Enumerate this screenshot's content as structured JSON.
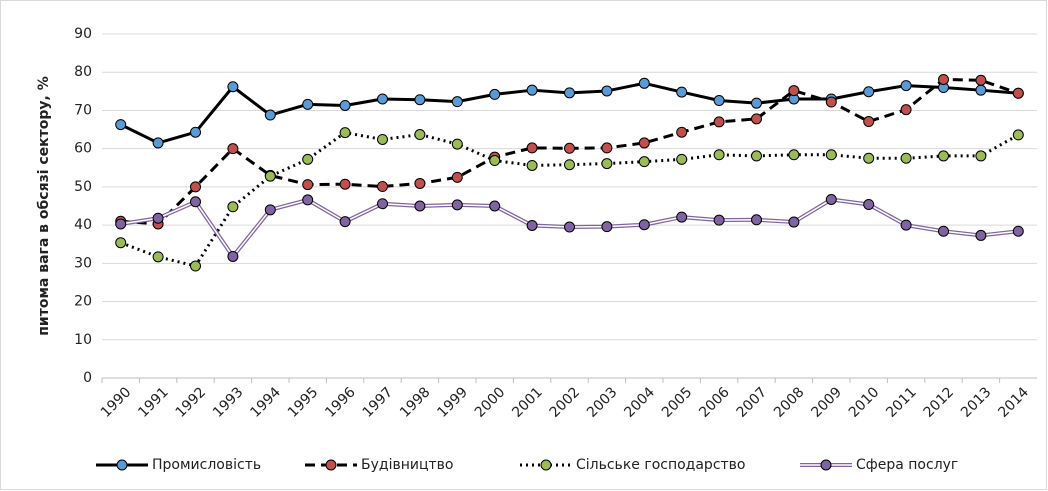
{
  "chart_data": {
    "type": "line",
    "y_label": "питома вага в обсязі сектору, %",
    "categories": [
      "1990",
      "1991",
      "1992",
      "1993",
      "1994",
      "1995",
      "1996",
      "1997",
      "1998",
      "1999",
      "2000",
      "2001",
      "2002",
      "2003",
      "2004",
      "2005",
      "2006",
      "2007",
      "2008",
      "2009",
      "2010",
      "2011",
      "2012",
      "2013",
      "2014"
    ],
    "series": [
      {
        "name": "Промисловість",
        "color": "#5b9bd5",
        "values": [
          66.3,
          61.5,
          64.3,
          76.2,
          68.8,
          71.6,
          71.3,
          73.0,
          72.8,
          72.3,
          74.2,
          75.3,
          74.6,
          75.1,
          77.1,
          74.8,
          72.6,
          71.9,
          73.0,
          73.0,
          74.9,
          76.5,
          76.0,
          75.3,
          74.5
        ]
      },
      {
        "name": "Будівництво",
        "color": "#c0504d",
        "values": [
          41.0,
          40.3,
          50.0,
          60.0,
          53.0,
          50.6,
          50.7,
          50.1,
          50.9,
          52.5,
          57.8,
          60.2,
          60.1,
          60.2,
          61.5,
          64.3,
          67.0,
          67.8,
          75.2,
          72.2,
          67.1,
          70.2,
          78.1,
          77.9,
          74.5
        ]
      },
      {
        "name": "Сільське господарство",
        "color": "#9bbb59",
        "values": [
          35.4,
          31.7,
          29.3,
          44.8,
          52.8,
          57.2,
          64.2,
          62.4,
          63.7,
          61.2,
          56.9,
          55.6,
          55.8,
          56.1,
          56.6,
          57.2,
          58.4,
          58.1,
          58.4,
          58.4,
          57.5,
          57.5,
          58.1,
          58.1,
          63.6
        ]
      },
      {
        "name": "Сфера послуг",
        "color": "#8064a2",
        "values": [
          40.3,
          41.8,
          46.1,
          31.8,
          44.0,
          46.6,
          40.9,
          45.6,
          45.0,
          45.3,
          45.0,
          39.9,
          39.5,
          39.6,
          40.1,
          42.1,
          41.3,
          41.4,
          40.8,
          46.7,
          45.4,
          40.0,
          38.4,
          37.3,
          38.4
        ]
      }
    ],
    "ylim": [
      0,
      90
    ],
    "yticks": [
      0,
      10,
      20,
      30,
      40,
      50,
      60,
      70,
      80,
      90
    ],
    "grid": true,
    "legend": "bottom"
  }
}
